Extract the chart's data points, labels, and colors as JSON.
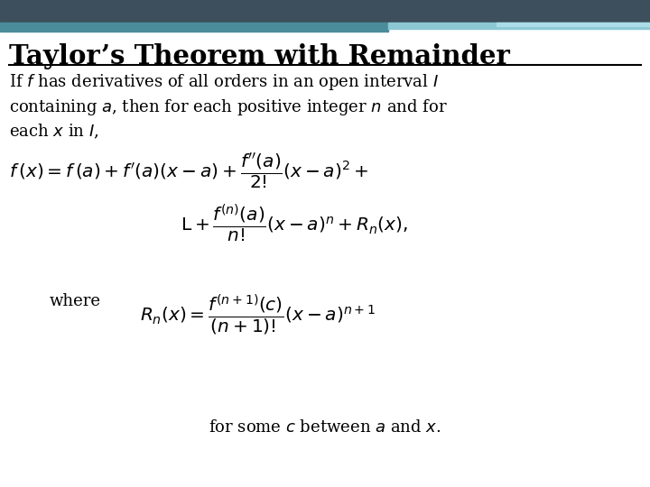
{
  "title": "Taylor’s Theorem with Remainder",
  "background_color": "#ffffff",
  "title_color": "#000000",
  "text_color": "#000000",
  "header_dark_color": "#3d4f5c",
  "header_teal_color": "#4a8c9a",
  "header_light_color": "#8cc8d4",
  "intro_line1": "If $f$ has derivatives of all orders in an open interval $I$",
  "intro_line2": "containing $a$, then for each positive integer $n$ and for",
  "intro_line3": "each $x$ in $I$,",
  "formula1": "$f\\,(x)= f\\,(a)+ f'(a)(x-a)+\\dfrac{f''(a)}{2!}(x-a)^2 +$",
  "formula2": "$\\mathrm{L} +\\dfrac{f^{(n)}(a)}{n!}(x-a)^n + R_n(x),$",
  "where_label": "where",
  "formula3": "$R_n(x)=\\dfrac{f^{(n+1)}(c)}{(n+1)!}(x-a)^{n+1}$",
  "bottom_text": "for some $c$ between $a$ and $x$.",
  "figsize": [
    7.2,
    5.4
  ],
  "dpi": 100
}
